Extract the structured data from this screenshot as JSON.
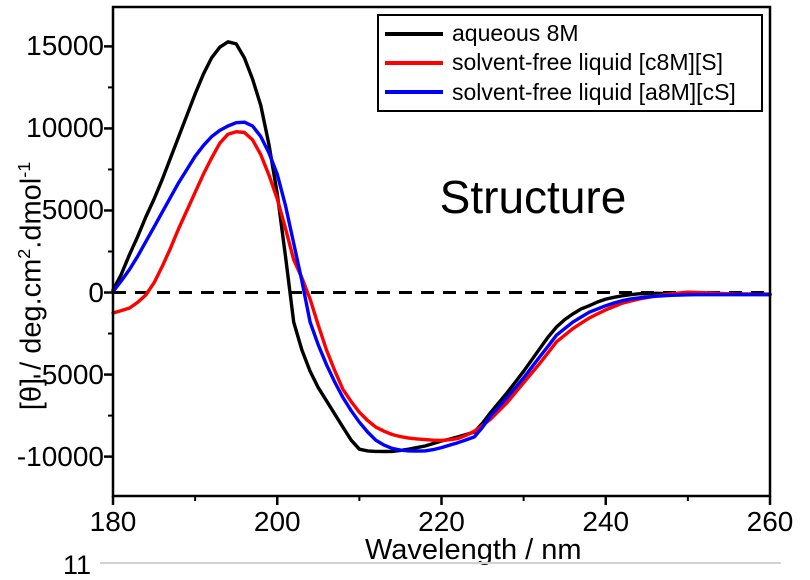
{
  "figure": {
    "annotation": "Structure",
    "page_fragment": "11"
  },
  "axes": {
    "xlabel": "Wavelength / nm",
    "ylabel_prefix": "[θ] / deg.cm",
    "ylabel_sup1": "2",
    "ylabel_mid": ".dmol",
    "ylabel_sup2": "-1"
  },
  "chart_data": {
    "type": "line",
    "title": "",
    "xlabel": "Wavelength / nm",
    "ylabel": "[θ] / deg.cm2.dmol-1",
    "grid": false,
    "legend_position": "top-right",
    "xlim": [
      180,
      260
    ],
    "ylim": [
      -12400,
      17400
    ],
    "x_ticks_major": [
      180,
      200,
      220,
      240,
      260
    ],
    "x_ticks_minor": [
      190,
      210,
      230,
      250
    ],
    "y_ticks_major": [
      -10000,
      -5000,
      0,
      5000,
      10000,
      15000
    ],
    "y_ticks_minor": [
      -7500,
      -2500,
      2500,
      7500,
      12500
    ],
    "zero_line": {
      "value": 0,
      "style": "dashed",
      "color": "#000000"
    },
    "x_start": 180,
    "x_step": 1,
    "series": [
      {
        "name": "aqueous 8M",
        "color": "#000000",
        "values": [
          150,
          1100,
          2300,
          3400,
          4600,
          5700,
          6900,
          8200,
          9500,
          10800,
          12100,
          13300,
          14300,
          14950,
          15280,
          15150,
          14300,
          13000,
          11400,
          9000,
          6000,
          2200,
          -1800,
          -3500,
          -4800,
          -5800,
          -6600,
          -7400,
          -8200,
          -9000,
          -9550,
          -9650,
          -9680,
          -9690,
          -9680,
          -9620,
          -9550,
          -9450,
          -9350,
          -9200,
          -9050,
          -8930,
          -8800,
          -8650,
          -8500,
          -7950,
          -7300,
          -6700,
          -6100,
          -5450,
          -4800,
          -4100,
          -3400,
          -2700,
          -2100,
          -1650,
          -1300,
          -1000,
          -800,
          -580,
          -400,
          -290,
          -200,
          -130,
          -80,
          -60,
          -50,
          -55,
          -60,
          -65,
          -70,
          -75,
          -80,
          -82,
          -85,
          -87,
          -90,
          -92,
          -95,
          -97,
          -100
        ]
      },
      {
        "name": "solvent-free liquid [c8M][S]",
        "color": "#ff0000",
        "values": [
          -1250,
          -1100,
          -950,
          -600,
          -150,
          600,
          1600,
          2700,
          3900,
          5000,
          6100,
          7200,
          8200,
          9100,
          9650,
          9800,
          9750,
          9300,
          8400,
          7150,
          5700,
          3900,
          2000,
          900,
          -400,
          -2000,
          -3500,
          -4750,
          -5900,
          -6650,
          -7300,
          -7800,
          -8200,
          -8450,
          -8650,
          -8780,
          -8870,
          -8920,
          -8960,
          -9000,
          -9020,
          -8970,
          -8900,
          -8700,
          -8450,
          -8100,
          -7700,
          -7200,
          -6700,
          -6100,
          -5500,
          -4900,
          -4300,
          -3650,
          -3000,
          -2600,
          -2200,
          -1870,
          -1550,
          -1300,
          -1050,
          -850,
          -650,
          -520,
          -400,
          -310,
          -220,
          -150,
          -80,
          -30,
          20,
          5,
          -10,
          -35,
          -60,
          -80,
          -100,
          -105,
          -110,
          -115,
          -120
        ]
      },
      {
        "name": "solvent-free liquid [a8M][cS]",
        "color": "#0000ff",
        "values": [
          50,
          700,
          1400,
          2200,
          3100,
          4000,
          4900,
          5800,
          6700,
          7500,
          8300,
          8950,
          9500,
          9880,
          10150,
          10350,
          10380,
          10150,
          9500,
          8500,
          7200,
          5300,
          3000,
          700,
          -1800,
          -3200,
          -4400,
          -5450,
          -6400,
          -7200,
          -7900,
          -8500,
          -9000,
          -9300,
          -9500,
          -9600,
          -9650,
          -9660,
          -9650,
          -9570,
          -9450,
          -9300,
          -9150,
          -8980,
          -8800,
          -8200,
          -7500,
          -6950,
          -6400,
          -5800,
          -5200,
          -4550,
          -3900,
          -3250,
          -2600,
          -2200,
          -1800,
          -1500,
          -1200,
          -1000,
          -800,
          -640,
          -500,
          -400,
          -330,
          -280,
          -230,
          -200,
          -170,
          -155,
          -140,
          -135,
          -130,
          -130,
          -130,
          -130,
          -130,
          -130,
          -130,
          -130,
          -130
        ]
      }
    ]
  }
}
